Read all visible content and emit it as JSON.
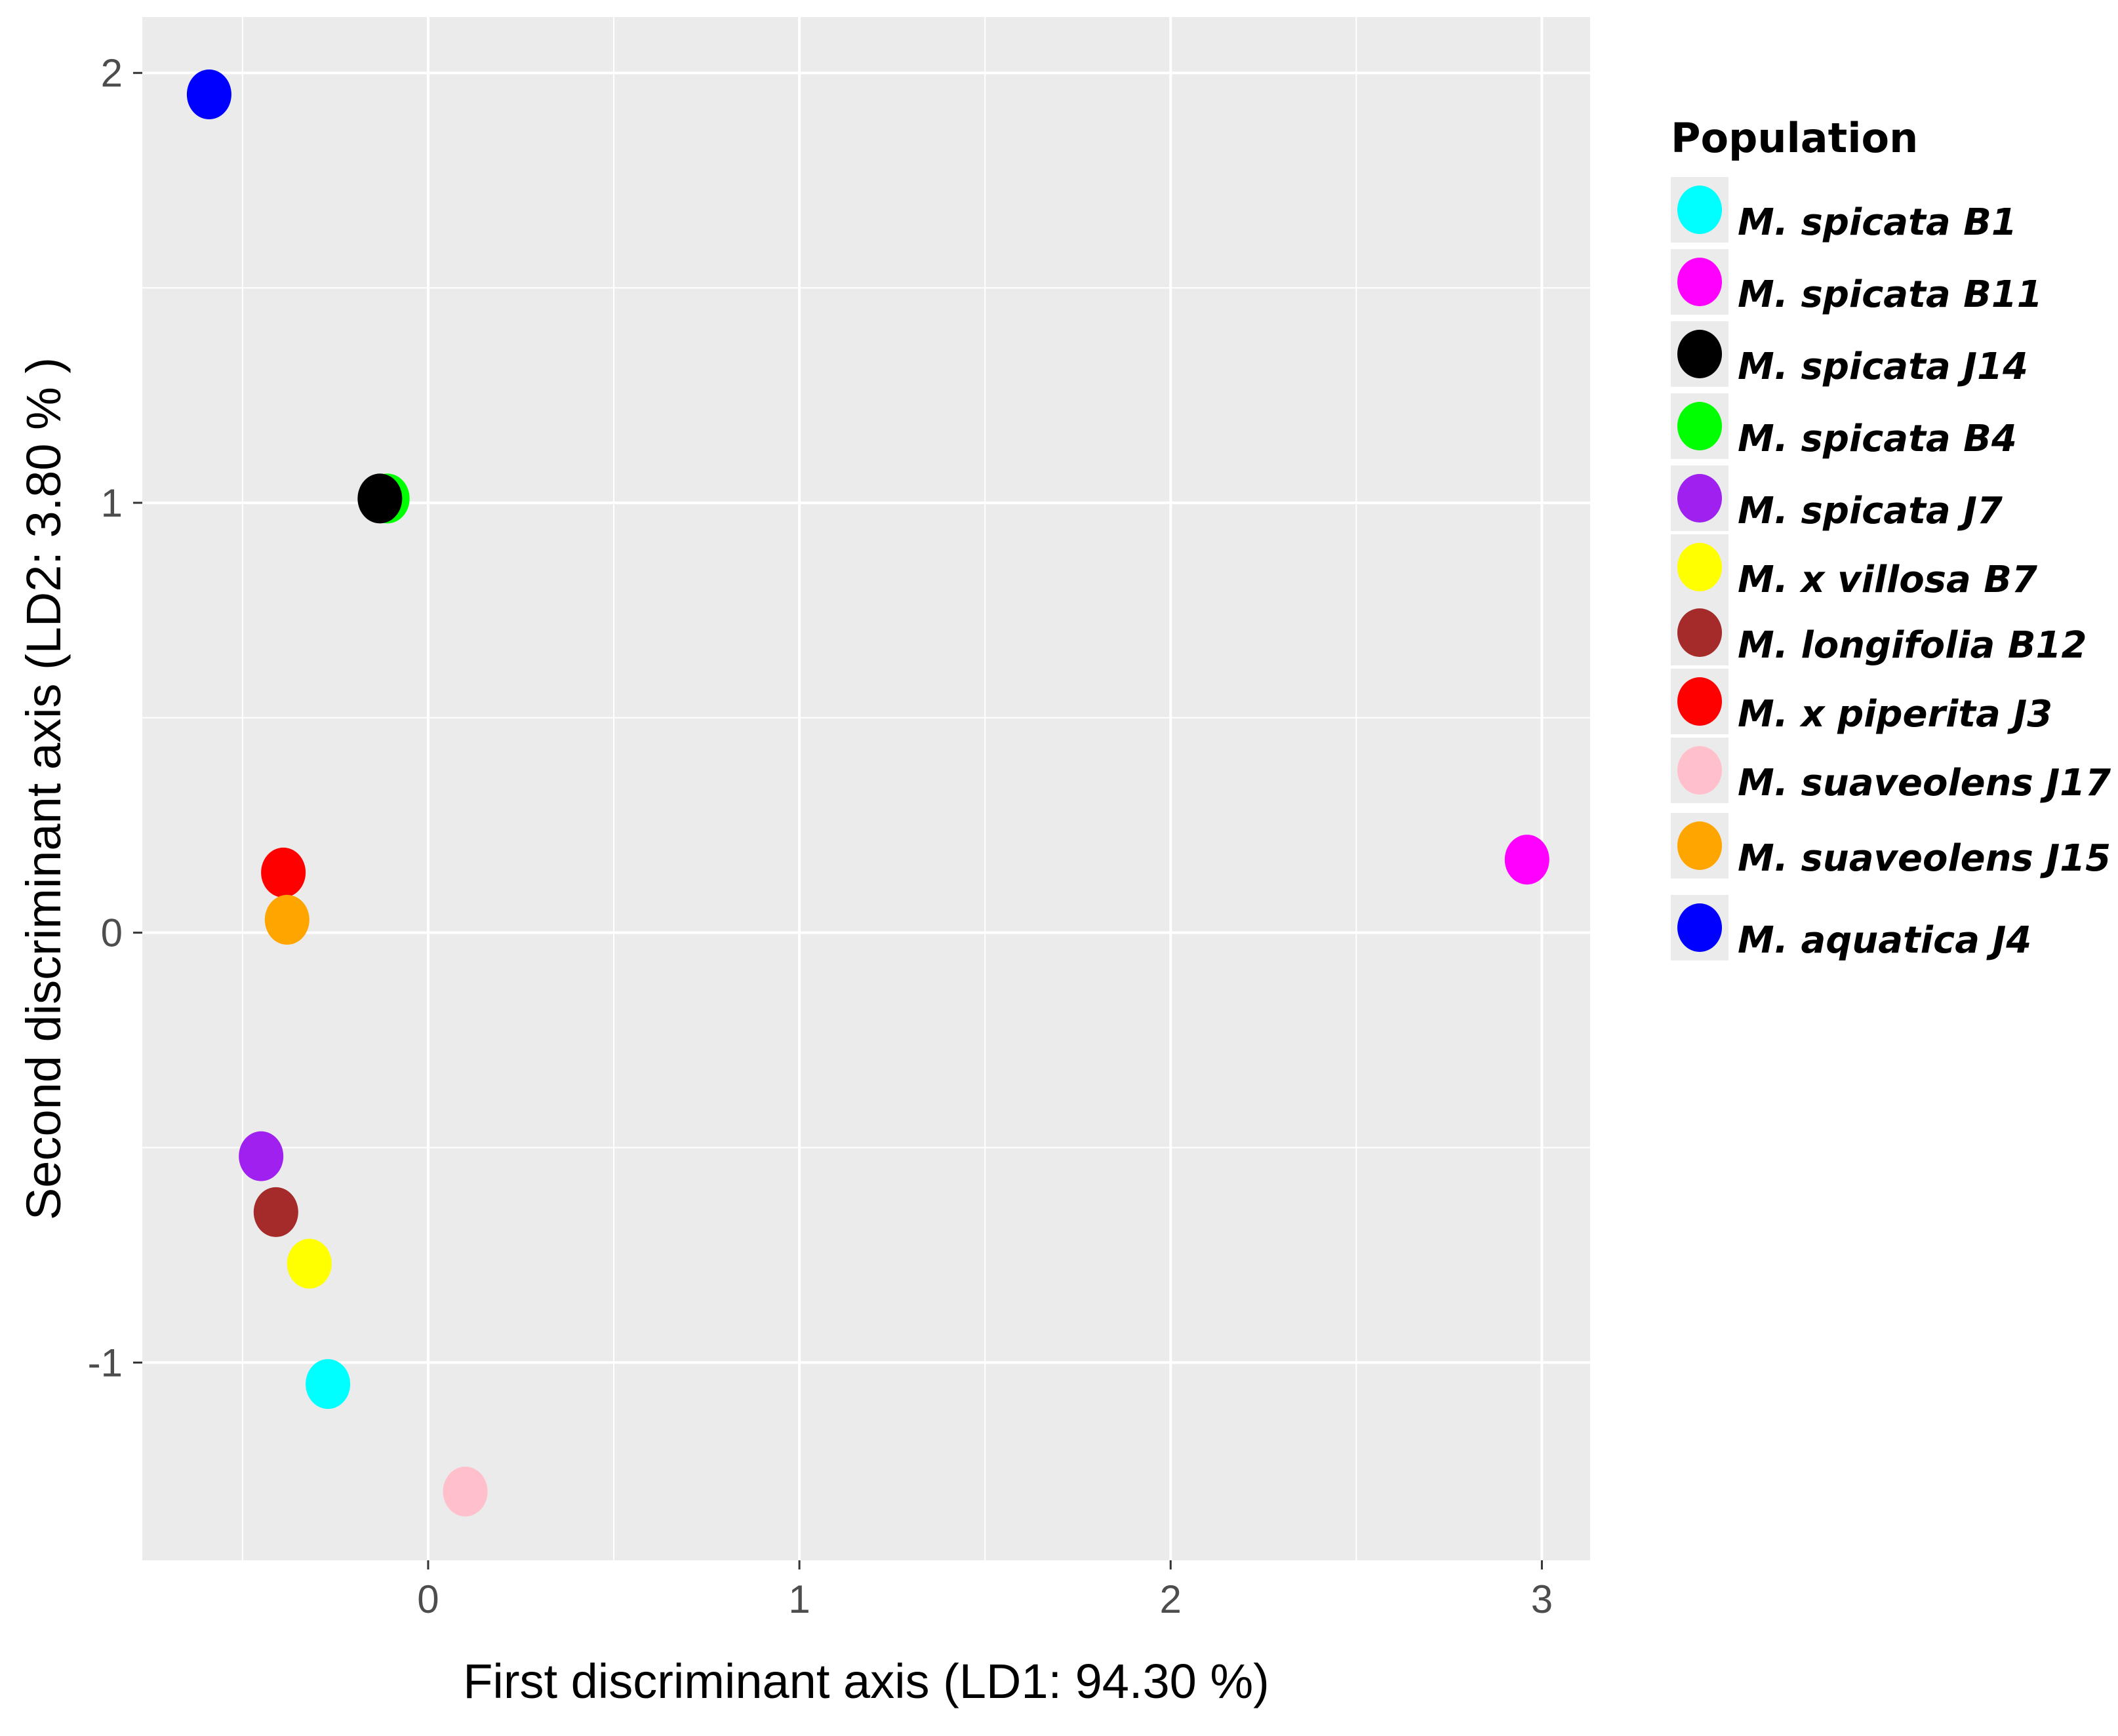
{
  "chart_data": {
    "type": "scatter",
    "title": "",
    "xlabel": "First discriminant axis (LD1: 94.30 %)",
    "ylabel": "Second discriminant axis (LD2: 3.80 % )",
    "xlim": [
      -0.77,
      3.13
    ],
    "ylim": [
      -1.46,
      2.13
    ],
    "x_ticks": [
      0,
      1,
      2,
      3
    ],
    "y_ticks": [
      -1,
      0,
      1,
      2
    ],
    "x_tick_labels": [
      "0",
      "1",
      "2",
      "3"
    ],
    "y_tick_labels": [
      "-1",
      "0",
      "1",
      "2"
    ],
    "grid": true,
    "legend": {
      "title": "Population",
      "position": "right"
    },
    "series": [
      {
        "name": "M. spicata B1",
        "color": "#00FFFF",
        "x": -0.27,
        "y": -1.05
      },
      {
        "name": "M. spicata B11",
        "color": "#FF00FF",
        "x": 2.96,
        "y": 0.17
      },
      {
        "name": "M. spicata J14",
        "color": "#000000",
        "x": -0.13,
        "y": 1.01
      },
      {
        "name": "M. spicata B4",
        "color": "#00FF00",
        "x": -0.11,
        "y": 1.01
      },
      {
        "name": "M. spicata J7",
        "color": "#A020F0",
        "x": -0.45,
        "y": -0.52
      },
      {
        "name": "M. x villosa B7",
        "color": "#FFFF00",
        "x": -0.32,
        "y": -0.77
      },
      {
        "name": "M. longifolia B12",
        "color": "#A52A2A",
        "x": -0.41,
        "y": -0.65
      },
      {
        "name": "M. x piperita J3",
        "color": "#FF0000",
        "x": -0.39,
        "y": 0.14
      },
      {
        "name": "M. suaveolens J17",
        "color": "#FFC0CB",
        "x": 0.1,
        "y": -1.3
      },
      {
        "name": "M. suaveolens J15",
        "color": "#FFA500",
        "x": -0.38,
        "y": 0.03
      },
      {
        "name": "M. aquatica J4",
        "color": "#0000FF",
        "x": -0.59,
        "y": 1.95
      }
    ],
    "plot_order": [
      "M. spicata B1",
      "M. spicata B11",
      "M. spicata B4",
      "M. spicata J14",
      "M. spicata J7",
      "M. x villosa B7",
      "M. longifolia B12",
      "M. x piperita J3",
      "M. suaveolens J17",
      "M. suaveolens J15",
      "M. aquatica J4"
    ]
  }
}
